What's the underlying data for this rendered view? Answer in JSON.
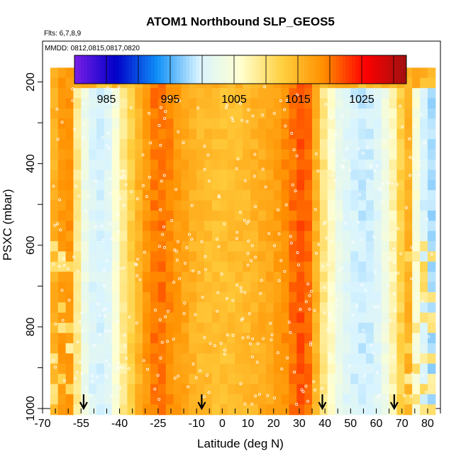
{
  "chart_data": {
    "type": "heatmap",
    "title": "ATOM1 Northbound SLP_GEOS5",
    "subtitle": "Flts: 6,7,8,9",
    "annotation": "MMDD: 0812,0815,0817,0820",
    "xlabel": "Latitude (deg N)",
    "ylabel": "PSXC (mbar)",
    "xlim": [
      -70,
      85
    ],
    "ylim": [
      1000,
      100
    ],
    "x_ticks": [
      -70,
      -55,
      -40,
      -25,
      -10,
      0,
      10,
      20,
      30,
      40,
      50,
      60,
      70,
      80
    ],
    "y_ticks": [
      200,
      400,
      600,
      800,
      1000
    ],
    "colorbar": {
      "min": 980,
      "max": 1032,
      "ticks": [
        985,
        995,
        1005,
        1015,
        1025
      ],
      "colors": [
        "#7a1ee6",
        "#0000c8",
        "#1090f8",
        "#d8f4ff",
        "#ffffd0",
        "#ffd040",
        "#ff9000",
        "#ff0000",
        "#a01010"
      ]
    },
    "slp_by_latitude": {
      "lat": [
        -70,
        -65,
        -60,
        -57,
        -53,
        -50,
        -45,
        -40,
        -35,
        -30,
        -25,
        -20,
        -10,
        0,
        10,
        20,
        25,
        30,
        35,
        38,
        42,
        46,
        50,
        55,
        60,
        65,
        70,
        73,
        76,
        80
      ],
      "slp": [
        1012,
        1016,
        1020,
        1010,
        1002,
        1000,
        1000,
        1007,
        1013,
        1018,
        1021,
        1019,
        1015,
        1014,
        1015,
        1017,
        1019,
        1022,
        1020,
        1011,
        1007,
        1002,
        1000,
        999,
        1000,
        1005,
        1013,
        1016,
        1003,
        998
      ]
    },
    "flight_markers_lat": [
      -54,
      -8,
      39,
      67
    ]
  }
}
